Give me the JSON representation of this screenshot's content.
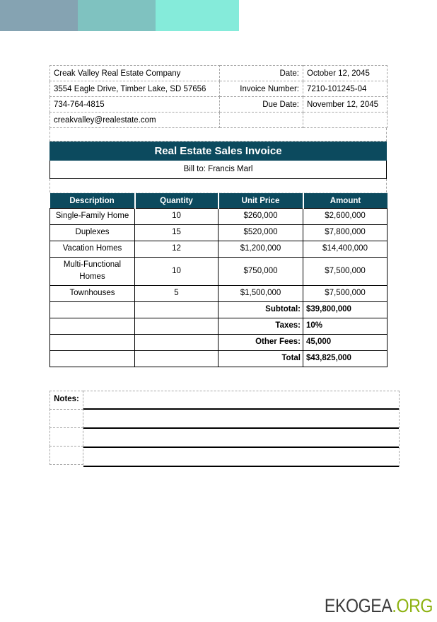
{
  "decoration": {
    "blocks": [
      {
        "name": "block-gray-blue",
        "color": "#85A3B2"
      },
      {
        "name": "block-teal",
        "color": "#7FC2C0"
      },
      {
        "name": "block-aqua",
        "color": "#85EBDA"
      }
    ]
  },
  "company": {
    "name": "Creak Valley Real Estate Company",
    "address": "3554 Eagle Drive, Timber Lake, SD 57656",
    "phone": "734-764-4815",
    "email": "creakvalley@realestate.com"
  },
  "invoice_meta": {
    "date_label": "Date:",
    "date_value": "October 12, 2045",
    "invoice_number_label": "Invoice Number:",
    "invoice_number_value": "7210-101245-04",
    "due_date_label": "Due Date:",
    "due_date_value": "November 12, 2045"
  },
  "title": "Real Estate Sales Invoice",
  "bill_to": "Bill to: Francis Marl",
  "items_table": {
    "headers": [
      "Description",
      "Quantity",
      "Unit Price",
      "Amount"
    ],
    "rows": [
      [
        "Single-Family Home",
        "10",
        "$260,000",
        "$2,600,000"
      ],
      [
        "Duplexes",
        "15",
        "$520,000",
        "$7,800,000"
      ],
      [
        "Vacation Homes",
        "12",
        "$1,200,000",
        "$14,400,000"
      ],
      [
        "Multi-Functional Homes",
        "10",
        "$750,000",
        "$7,500,000"
      ],
      [
        "Townhouses",
        "5",
        "$1,500,000",
        "$7,500,000"
      ]
    ],
    "summary": [
      {
        "label": "Subtotal:",
        "value": "$39,800,000"
      },
      {
        "label": "Taxes:",
        "value": "10%"
      },
      {
        "label": "Other Fees:",
        "value": "45,000"
      },
      {
        "label": "Total",
        "value": "$43,825,000"
      }
    ]
  },
  "notes": {
    "label": "Notes:"
  },
  "footer": {
    "brand": "EKOGEA",
    "brand_suffix": ".ORG",
    "brand_color": "#3B3B3B",
    "suffix_color": "#8DB211"
  },
  "colors": {
    "accent_dark_teal": "#0C4A5E"
  }
}
